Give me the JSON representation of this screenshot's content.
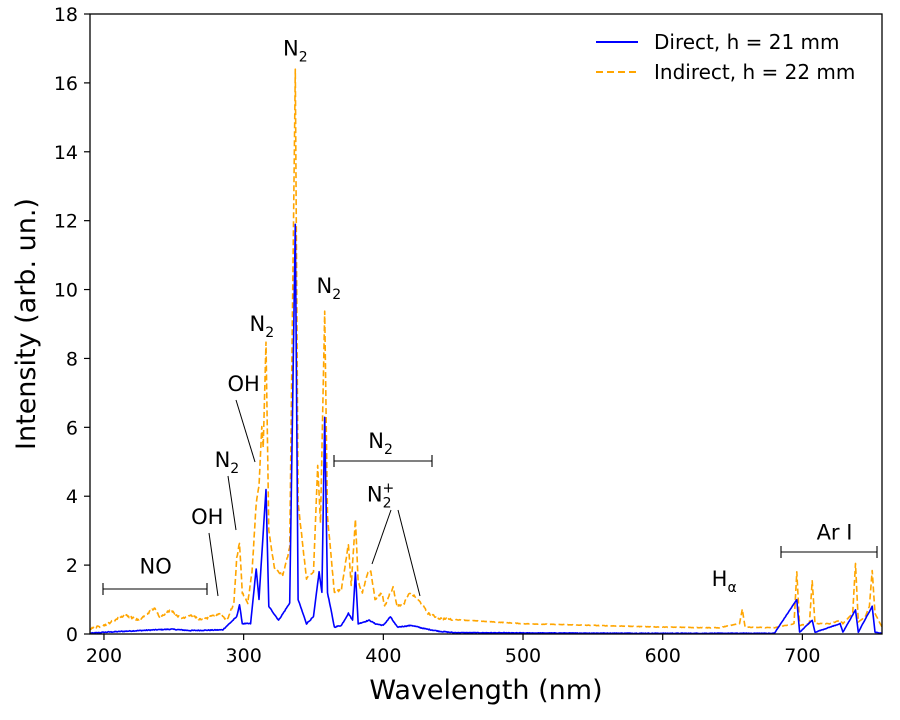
{
  "chart_data": {
    "type": "line",
    "title": "",
    "xlabel": "Wavelength (nm)",
    "ylabel": "Intensity (arb. un.)",
    "xlim": [
      190,
      757
    ],
    "ylim": [
      0,
      18
    ],
    "xticks": [
      200,
      300,
      400,
      500,
      600,
      700
    ],
    "yticks": [
      0,
      2,
      4,
      6,
      8,
      10,
      12,
      14,
      16,
      18
    ],
    "grid": false,
    "legend_position": "top-right",
    "series": [
      {
        "name": "Direct, h = 21 mm",
        "color": "#0000ff",
        "style": "solid",
        "baseline": 0.03,
        "points": [
          [
            190,
            0.02
          ],
          [
            200,
            0.05
          ],
          [
            236,
            0.12
          ],
          [
            248,
            0.14
          ],
          [
            262,
            0.1
          ],
          [
            285,
            0.12
          ],
          [
            295,
            0.5
          ],
          [
            297,
            0.85
          ],
          [
            299,
            0.3
          ],
          [
            305,
            0.3
          ],
          [
            309,
            1.9
          ],
          [
            311,
            1.0
          ],
          [
            313,
            2.3
          ],
          [
            316,
            4.2
          ],
          [
            318,
            0.8
          ],
          [
            325,
            0.4
          ],
          [
            333,
            0.9
          ],
          [
            337,
            11.9
          ],
          [
            339,
            1.0
          ],
          [
            345,
            0.3
          ],
          [
            350,
            0.5
          ],
          [
            354,
            1.8
          ],
          [
            356,
            1.2
          ],
          [
            358,
            6.3
          ],
          [
            360,
            1.2
          ],
          [
            365,
            0.2
          ],
          [
            370,
            0.25
          ],
          [
            375,
            0.6
          ],
          [
            378,
            0.4
          ],
          [
            380,
            1.8
          ],
          [
            382,
            0.3
          ],
          [
            390,
            0.4
          ],
          [
            394,
            0.3
          ],
          [
            400,
            0.25
          ],
          [
            405,
            0.5
          ],
          [
            410,
            0.2
          ],
          [
            420,
            0.25
          ],
          [
            430,
            0.15
          ],
          [
            440,
            0.08
          ],
          [
            450,
            0.04
          ],
          [
            500,
            0.03
          ],
          [
            600,
            0.02
          ],
          [
            650,
            0.02
          ],
          [
            680,
            0.02
          ],
          [
            696,
            1.0
          ],
          [
            698,
            0.05
          ],
          [
            707,
            0.4
          ],
          [
            709,
            0.05
          ],
          [
            727,
            0.3
          ],
          [
            729,
            0.05
          ],
          [
            738,
            0.7
          ],
          [
            740,
            0.05
          ],
          [
            750,
            0.8
          ],
          [
            752,
            0.05
          ],
          [
            757,
            0.02
          ]
        ]
      },
      {
        "name": "Indirect, h = 22 mm",
        "color": "#ffa500",
        "style": "dashed",
        "baseline": 0.12,
        "points": [
          [
            190,
            0.15
          ],
          [
            200,
            0.25
          ],
          [
            210,
            0.45
          ],
          [
            215,
            0.55
          ],
          [
            225,
            0.4
          ],
          [
            236,
            0.75
          ],
          [
            240,
            0.5
          ],
          [
            248,
            0.7
          ],
          [
            255,
            0.45
          ],
          [
            262,
            0.55
          ],
          [
            270,
            0.4
          ],
          [
            283,
            0.6
          ],
          [
            288,
            0.4
          ],
          [
            293,
            0.9
          ],
          [
            295,
            2.2
          ],
          [
            297,
            2.65
          ],
          [
            299,
            1.2
          ],
          [
            303,
            0.9
          ],
          [
            306,
            1.8
          ],
          [
            309,
            3.8
          ],
          [
            311,
            4.3
          ],
          [
            313,
            6.0
          ],
          [
            314,
            5.4
          ],
          [
            316,
            8.5
          ],
          [
            318,
            3.0
          ],
          [
            322,
            1.9
          ],
          [
            328,
            1.7
          ],
          [
            333,
            2.5
          ],
          [
            337,
            16.4
          ],
          [
            339,
            3.8
          ],
          [
            345,
            1.6
          ],
          [
            350,
            1.8
          ],
          [
            353,
            4.9
          ],
          [
            355,
            3.2
          ],
          [
            358,
            9.4
          ],
          [
            360,
            3.4
          ],
          [
            365,
            1.2
          ],
          [
            370,
            1.3
          ],
          [
            375,
            2.6
          ],
          [
            377,
            1.4
          ],
          [
            380,
            3.35
          ],
          [
            382,
            1.5
          ],
          [
            385,
            1.2
          ],
          [
            389,
            1.8
          ],
          [
            391,
            1.85
          ],
          [
            394,
            1.0
          ],
          [
            399,
            1.2
          ],
          [
            401,
            0.8
          ],
          [
            405,
            1.2
          ],
          [
            407,
            1.35
          ],
          [
            410,
            0.8
          ],
          [
            415,
            0.9
          ],
          [
            419,
            1.2
          ],
          [
            422,
            1.1
          ],
          [
            427,
            0.9
          ],
          [
            432,
            0.6
          ],
          [
            440,
            0.45
          ],
          [
            450,
            0.42
          ],
          [
            500,
            0.3
          ],
          [
            550,
            0.25
          ],
          [
            600,
            0.2
          ],
          [
            640,
            0.18
          ],
          [
            655,
            0.3
          ],
          [
            657,
            0.72
          ],
          [
            659,
            0.2
          ],
          [
            680,
            0.18
          ],
          [
            694,
            0.3
          ],
          [
            696,
            1.8
          ],
          [
            698,
            0.25
          ],
          [
            705,
            0.3
          ],
          [
            707,
            1.55
          ],
          [
            709,
            0.3
          ],
          [
            720,
            0.3
          ],
          [
            727,
            0.4
          ],
          [
            729,
            0.3
          ],
          [
            736,
            0.6
          ],
          [
            738,
            2.05
          ],
          [
            740,
            0.35
          ],
          [
            745,
            0.5
          ],
          [
            748,
            0.8
          ],
          [
            750,
            1.85
          ],
          [
            752,
            0.6
          ],
          [
            757,
            0.2
          ]
        ]
      }
    ],
    "annotations": [
      {
        "label": "N",
        "sub": "2",
        "sup": "",
        "x": 337,
        "y": 16.8
      },
      {
        "label": "N",
        "sub": "2",
        "sup": "",
        "x": 361,
        "y": 9.9
      },
      {
        "label": "N",
        "sub": "2",
        "sup": "",
        "x": 313,
        "y": 8.8
      },
      {
        "label": "OH",
        "sub": "",
        "sup": "",
        "x": 300,
        "y": 7.05
      },
      {
        "label": "N",
        "sub": "2",
        "sup": "",
        "x": 288,
        "y": 4.85
      },
      {
        "label": "OH",
        "sub": "",
        "sup": "",
        "x": 274,
        "y": 3.2
      },
      {
        "label": "NO",
        "sub": "",
        "sup": "",
        "x": 237,
        "y": 1.75
      },
      {
        "label": "N",
        "sub": "2",
        "sup": "",
        "x": 398,
        "y": 5.4
      },
      {
        "label": "N",
        "sub": "2",
        "sup": "+",
        "x": 398,
        "y": 3.85
      },
      {
        "label": "H",
        "sub": "α",
        "sup": "",
        "x": 644,
        "y": 1.4
      },
      {
        "label": "Ar I",
        "sub": "",
        "sup": "",
        "x": 723,
        "y": 2.75
      }
    ]
  }
}
